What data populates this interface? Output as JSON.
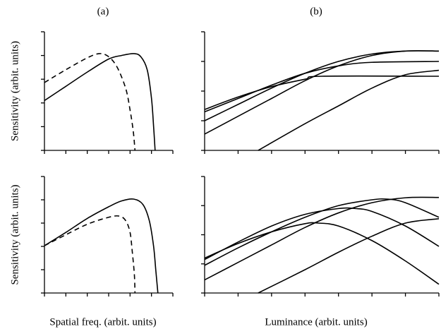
{
  "chart_data": [
    {
      "type": "line",
      "title": "(a)",
      "ylabel": "Sensitivity (arbit. units)",
      "xlim": [
        0,
        6
      ],
      "ylim": [
        0,
        5
      ],
      "xticks": [
        0,
        1,
        2,
        3,
        4,
        5,
        6
      ],
      "yticks": [
        0,
        1,
        2,
        3,
        4,
        5
      ],
      "series": [
        {
          "color": "#000000",
          "dashed": false,
          "x": [
            0,
            1,
            2,
            3,
            3.6,
            4.17,
            4.5,
            4.8,
            5.0,
            5.1,
            5.17
          ],
          "values": [
            2.1,
            2.7,
            3.3,
            3.85,
            4.0,
            4.08,
            3.95,
            3.4,
            2.2,
            1.0,
            0
          ]
        },
        {
          "color": "#000000",
          "dashed": true,
          "x": [
            0,
            1,
            2,
            2.57,
            3,
            3.4,
            3.8,
            4.0,
            4.15,
            4.23
          ],
          "values": [
            2.86,
            3.4,
            3.9,
            4.08,
            3.95,
            3.5,
            2.6,
            1.7,
            0.8,
            0
          ]
        }
      ]
    },
    {
      "type": "line",
      "title": "(b)",
      "xlim": [
        0,
        7
      ],
      "ylim": [
        0,
        4
      ],
      "xticks": [
        0,
        1,
        2,
        3,
        4,
        5,
        6,
        7
      ],
      "yticks": [
        0,
        1,
        2,
        3,
        4
      ],
      "series": [
        {
          "color": "#000000",
          "dashed": false,
          "x": [
            0,
            1,
            2,
            3,
            3.5,
            7
          ],
          "values": [
            1.38,
            1.8,
            2.15,
            2.4,
            2.5,
            2.5
          ]
        },
        {
          "color": "#000000",
          "dashed": false,
          "x": [
            0,
            1,
            2,
            3,
            4,
            5,
            7
          ],
          "values": [
            1.3,
            1.75,
            2.2,
            2.6,
            2.85,
            2.97,
            3.0
          ]
        },
        {
          "color": "#000000",
          "dashed": false,
          "x": [
            0,
            1,
            2,
            3,
            4,
            5,
            6,
            7
          ],
          "values": [
            1.0,
            1.55,
            2.1,
            2.6,
            3.0,
            3.25,
            3.35,
            3.35
          ]
        },
        {
          "color": "#000000",
          "dashed": false,
          "x": [
            0,
            1,
            2,
            3,
            4,
            5,
            6,
            7
          ],
          "values": [
            0.55,
            1.15,
            1.75,
            2.35,
            2.85,
            3.2,
            3.35,
            3.35
          ]
        },
        {
          "color": "#000000",
          "dashed": false,
          "x": [
            1.6,
            3,
            4,
            5,
            6,
            7
          ],
          "values": [
            0,
            0.9,
            1.5,
            2.1,
            2.55,
            2.7
          ]
        }
      ]
    },
    {
      "type": "line",
      "ylabel": "Sensitivity (arbit. units)",
      "xlabel": "Spatial freq. (arbit. units)",
      "xlim": [
        0,
        6
      ],
      "ylim": [
        0,
        5
      ],
      "xticks": [
        0,
        1,
        2,
        3,
        4,
        5,
        6
      ],
      "yticks": [
        0,
        1,
        2,
        3,
        4,
        5
      ],
      "series": [
        {
          "color": "#000000",
          "dashed": false,
          "x": [
            0,
            1,
            2,
            3,
            3.6,
            4.17,
            4.6,
            4.9,
            5.1,
            5.2,
            5.3
          ],
          "values": [
            2.03,
            2.6,
            3.2,
            3.7,
            3.95,
            4.03,
            3.8,
            3.1,
            2.0,
            1.0,
            0
          ]
        },
        {
          "color": "#000000",
          "dashed": true,
          "x": [
            0,
            1,
            2,
            3,
            3.5,
            3.8,
            4.0,
            4.1,
            4.2,
            4.23
          ],
          "values": [
            2.03,
            2.5,
            2.95,
            3.25,
            3.3,
            3.1,
            2.6,
            1.8,
            0.8,
            0
          ]
        }
      ]
    },
    {
      "type": "line",
      "xlabel": "Luminance (arbit. units)",
      "xlim": [
        0,
        7
      ],
      "ylim": [
        0,
        4
      ],
      "xticks": [
        0,
        1,
        2,
        3,
        4,
        5,
        6,
        7
      ],
      "yticks": [
        0,
        1,
        2,
        3,
        4
      ],
      "series": [
        {
          "color": "#000000",
          "dashed": false,
          "x": [
            0,
            1,
            2,
            3,
            3.4,
            4,
            5,
            6,
            7
          ],
          "values": [
            1.2,
            1.7,
            2.1,
            2.38,
            2.4,
            2.3,
            1.8,
            1.1,
            0.3
          ]
        },
        {
          "color": "#000000",
          "dashed": false,
          "x": [
            0,
            1,
            2,
            3,
            4,
            4.5,
            5,
            6,
            7
          ],
          "values": [
            1.15,
            1.75,
            2.3,
            2.7,
            2.9,
            2.9,
            2.8,
            2.3,
            1.6
          ]
        },
        {
          "color": "#000000",
          "dashed": false,
          "x": [
            0,
            1,
            2,
            3,
            4,
            5,
            5.5,
            6,
            7
          ],
          "values": [
            0.95,
            1.55,
            2.1,
            2.6,
            3.0,
            3.2,
            3.22,
            3.1,
            2.6
          ]
        },
        {
          "color": "#000000",
          "dashed": false,
          "x": [
            0,
            1,
            2,
            3,
            4,
            5,
            6,
            7
          ],
          "values": [
            0.45,
            1.05,
            1.65,
            2.25,
            2.75,
            3.1,
            3.27,
            3.28
          ]
        },
        {
          "color": "#000000",
          "dashed": false,
          "x": [
            1.6,
            3,
            4,
            5,
            6,
            7
          ],
          "values": [
            0,
            0.8,
            1.4,
            1.95,
            2.4,
            2.55
          ]
        }
      ]
    }
  ]
}
